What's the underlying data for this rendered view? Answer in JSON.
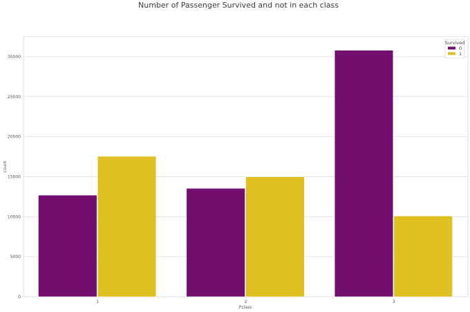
{
  "chart_data": {
    "type": "bar",
    "title": "Number of Passenger Survived and not in each class",
    "xlabel": "Pclass",
    "ylabel": "count",
    "categories": [
      "1",
      "2",
      "3"
    ],
    "ylim": [
      0,
      32500
    ],
    "yticks": [
      0,
      5000,
      10000,
      15000,
      20000,
      25000,
      30000
    ],
    "grid": true,
    "legend": {
      "title": "Survived",
      "placement": "top-right"
    },
    "series": [
      {
        "name": "0",
        "color": "#720e6e",
        "values": [
          12700,
          13550,
          30800
        ]
      },
      {
        "name": "1",
        "color": "#dec020",
        "values": [
          17550,
          15000,
          10100
        ]
      }
    ]
  }
}
